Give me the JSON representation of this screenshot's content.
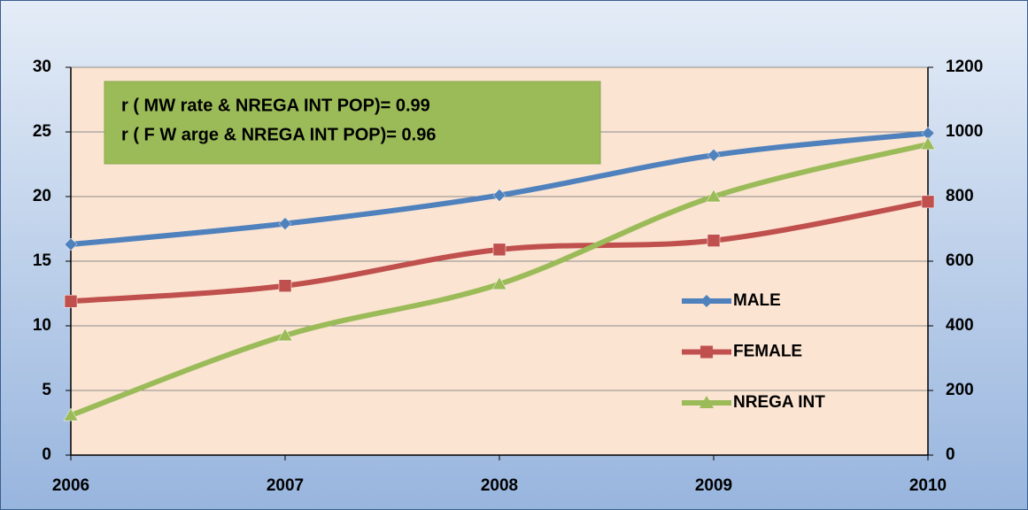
{
  "chart_data": {
    "type": "line",
    "categories": [
      "2006",
      "2007",
      "2008",
      "2009",
      "2010"
    ],
    "series": [
      {
        "name": "MALE",
        "color": "#4f81bd",
        "marker": "diamond",
        "axis": "y",
        "values": [
          16.3,
          17.9,
          20.1,
          23.2,
          24.9
        ]
      },
      {
        "name": "FEMALE",
        "color": "#c0504d",
        "marker": "square",
        "axis": "y",
        "values": [
          11.9,
          13.1,
          15.9,
          16.6,
          19.6
        ]
      },
      {
        "name": "NREGA INT",
        "color": "#9bbb59",
        "marker": "triangle",
        "axis": "y2",
        "values": [
          123,
          370,
          529,
          800,
          962
        ]
      }
    ],
    "ylim": [
      0,
      30
    ],
    "yticks": [
      0,
      5,
      10,
      15,
      20,
      25,
      30
    ],
    "y2lim": [
      0,
      1200
    ],
    "y2ticks": [
      0,
      200,
      400,
      600,
      800,
      1000,
      1200
    ],
    "grid": true,
    "annotations": [
      "r  ( MW  rate &  NREGA INT POP)=  0.99",
      "r  ( F W  arge &  NREGA INT POP)=  0.96"
    ],
    "annotation_color": "#9bbb59"
  }
}
